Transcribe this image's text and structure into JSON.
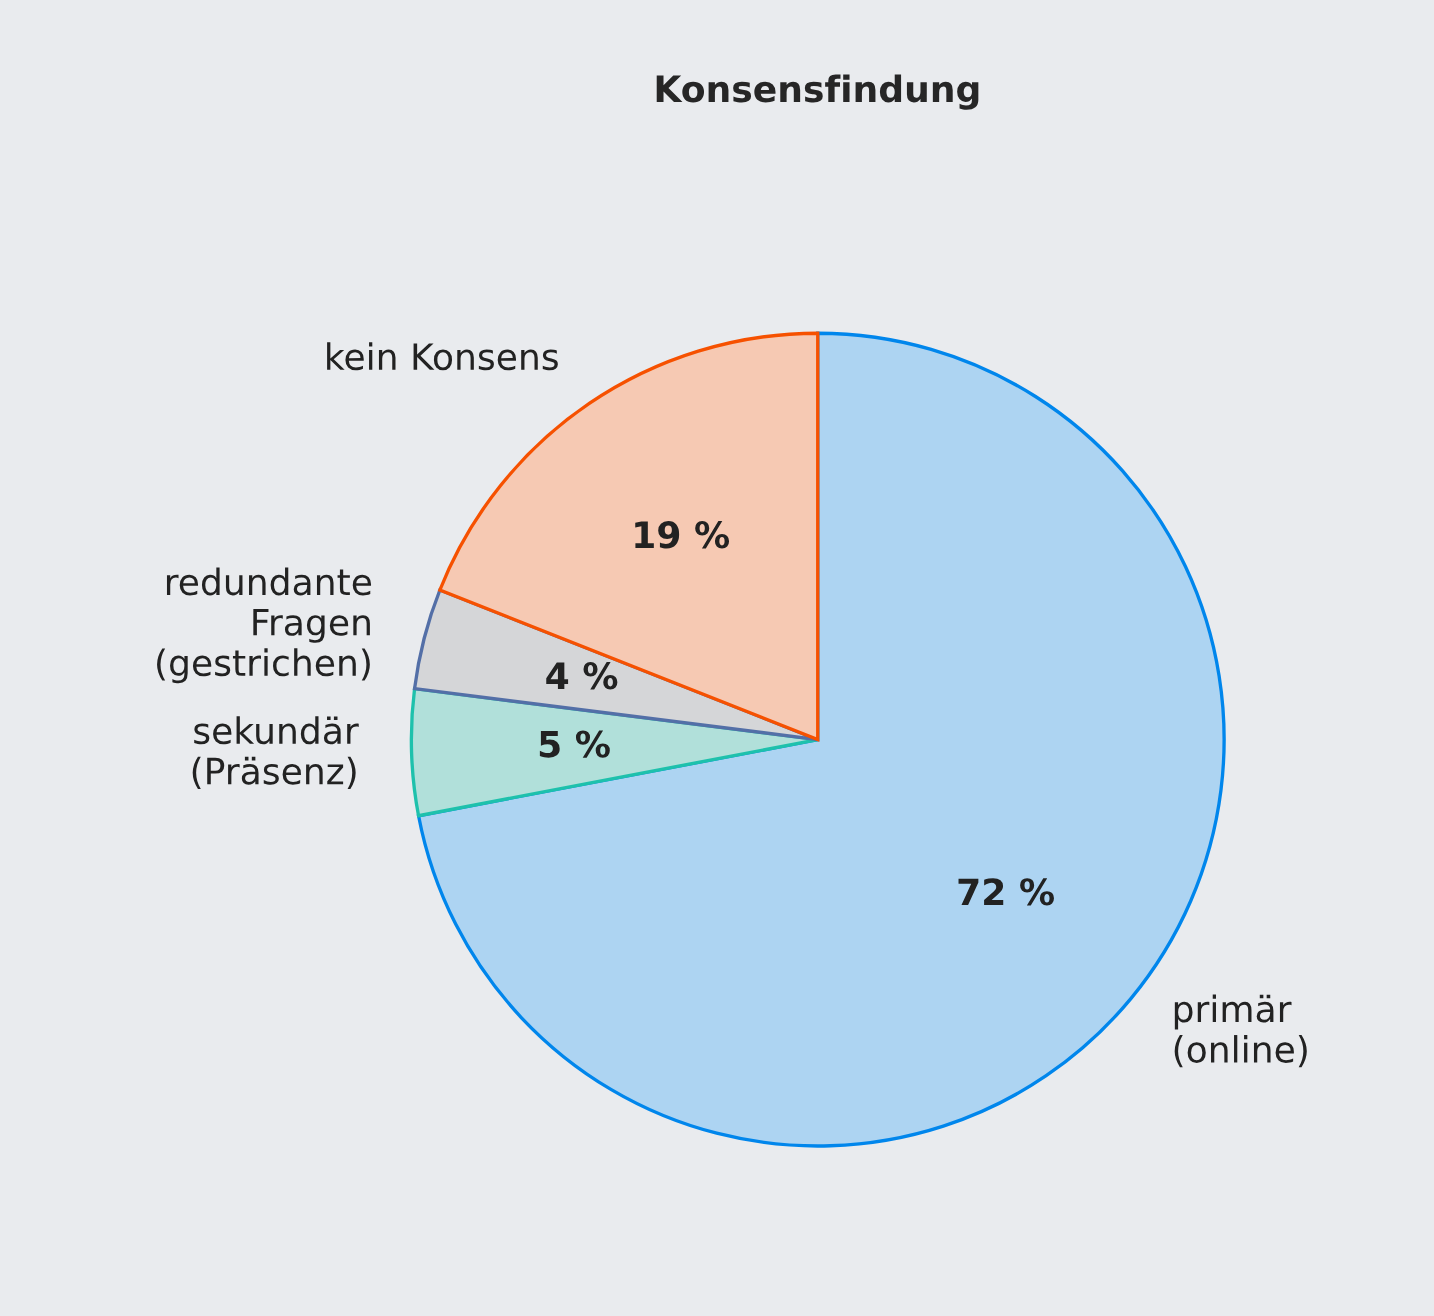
{
  "chart_data": {
    "type": "pie",
    "title": "Konsensfindung",
    "categories": [
      "primär\n(online)",
      "sekundär\n(Präsenz)",
      "redundante\nFragen\n(gestrichen)",
      "kein Konsens"
    ],
    "values": [
      72,
      5,
      4,
      19
    ],
    "value_labels": [
      "72 %",
      "5 %",
      "4 %",
      "19 %"
    ],
    "colors": [
      "#add4f2",
      "#b1e0da",
      "#d5d6d8",
      "#f6c9b3"
    ],
    "legend": false
  }
}
